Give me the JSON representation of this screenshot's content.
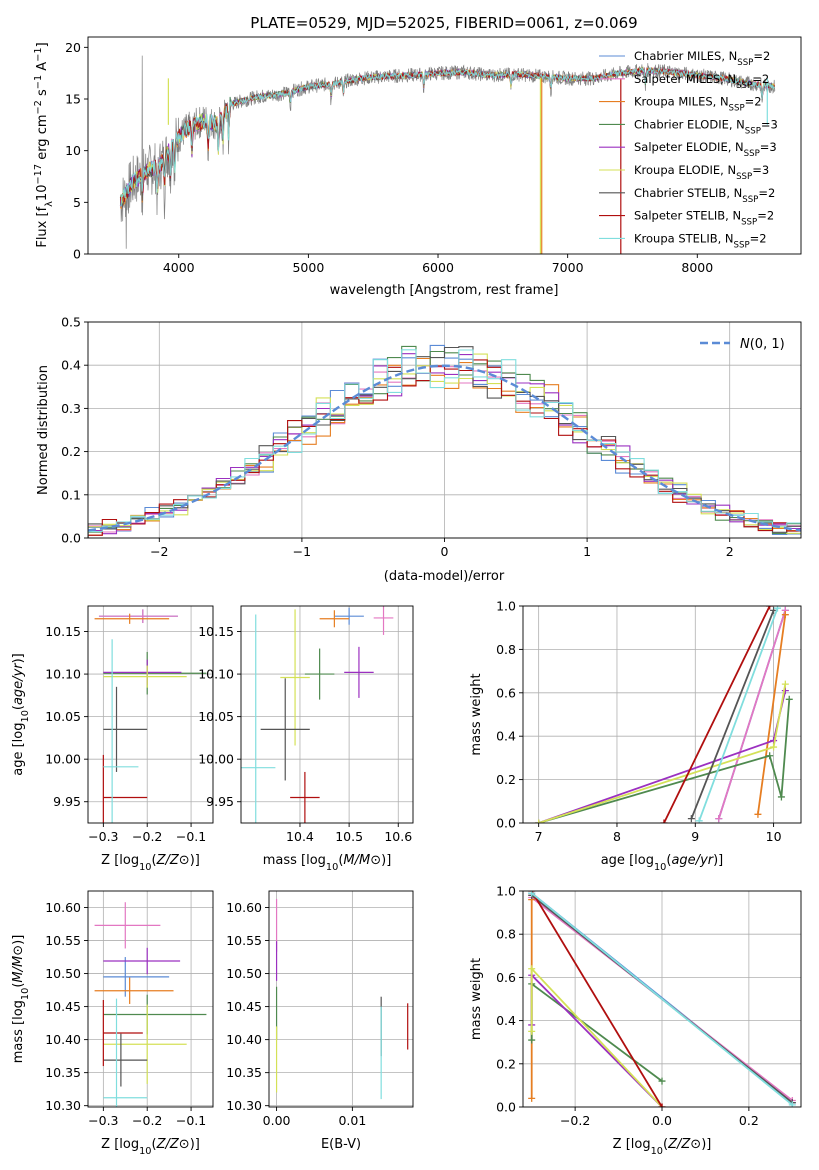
{
  "colors": {
    "Chabrier MILES": "#5b8bd6",
    "Salpeter MILES": "#e377c2",
    "Kroupa MILES": "#e67e22",
    "Chabrier ELODIE": "#4f8a4f",
    "Salpeter ELODIE": "#9b30c0",
    "Kroupa ELODIE": "#d4e157",
    "Chabrier STELIB": "#555555",
    "Salpeter STELIB": "#b00f0f",
    "Kroupa STELIB": "#80dede"
  },
  "chart_data": [
    {
      "id": "spectrum",
      "type": "line",
      "title": "PLATE=0529, MJD=52025, FIBERID=0061, z=0.069",
      "xlabel": "wavelength [Angstrom, rest frame]",
      "ylabel": "Flux [fλ10⁻¹⁷ erg cm⁻² s⁻¹ A⁻¹]",
      "xlim": [
        3300,
        8800
      ],
      "ylim": [
        0,
        21
      ],
      "xticks": [
        4000,
        5000,
        6000,
        7000,
        8000
      ],
      "yticks": [
        0,
        5,
        10,
        15,
        20
      ],
      "grid": false,
      "legend_position": "right",
      "legend": [
        {
          "name": "Chabrier MILES",
          "ssp": "2"
        },
        {
          "name": "Salpeter MILES",
          "ssp": "2"
        },
        {
          "name": "Kroupa MILES",
          "ssp": "2"
        },
        {
          "name": "Chabrier ELODIE",
          "ssp": "3"
        },
        {
          "name": "Salpeter ELODIE",
          "ssp": "3"
        },
        {
          "name": "Kroupa ELODIE",
          "ssp": "3"
        },
        {
          "name": "Chabrier STELIB",
          "ssp": "2"
        },
        {
          "name": "Salpeter STELIB",
          "ssp": "2"
        },
        {
          "name": "Kroupa STELIB",
          "ssp": "2"
        }
      ],
      "continuum": [
        [
          3550,
          5
        ],
        [
          3650,
          7
        ],
        [
          3750,
          8
        ],
        [
          3850,
          8.5
        ],
        [
          3950,
          10.5
        ],
        [
          4050,
          12
        ],
        [
          4200,
          13
        ],
        [
          4300,
          12.5
        ],
        [
          4400,
          14.5
        ],
        [
          4600,
          15.2
        ],
        [
          4800,
          15.5
        ],
        [
          5000,
          16.2
        ],
        [
          5200,
          16.5
        ],
        [
          5400,
          17
        ],
        [
          5600,
          17.2
        ],
        [
          5800,
          17.3
        ],
        [
          6000,
          17.5
        ],
        [
          6200,
          17.6
        ],
        [
          6400,
          17.3
        ],
        [
          6600,
          17.4
        ],
        [
          6800,
          17.2
        ],
        [
          7000,
          17
        ],
        [
          7200,
          17
        ],
        [
          7400,
          17.5
        ],
        [
          7600,
          17.8
        ],
        [
          7800,
          17.6
        ],
        [
          8000,
          17.3
        ],
        [
          8200,
          17
        ],
        [
          8400,
          16.5
        ],
        [
          8600,
          16.2
        ]
      ]
    },
    {
      "id": "residuals",
      "type": "step",
      "xlabel": "(data-model)/error",
      "ylabel": "Normed distribution",
      "xlim": [
        -2.5,
        2.5
      ],
      "ylim": [
        0,
        0.5
      ],
      "xticks": [
        -2,
        -1,
        0,
        1,
        2
      ],
      "yticks": [
        0.0,
        0.1,
        0.2,
        0.3,
        0.4,
        0.5
      ],
      "grid": true,
      "legend": "N(0,1)",
      "legend_position": "top-right",
      "bin_width": 0.1
    },
    {
      "id": "age-vs-Z",
      "type": "errorbar",
      "xlabel": "Z [log10(Z/Z⊙)]",
      "ylabel": "age  [log10(age/yr)]",
      "xlim": [
        -0.335,
        -0.05
      ],
      "ylim": [
        9.925,
        10.18
      ],
      "xticks": [
        -0.3,
        -0.2,
        -0.1
      ],
      "yticks": [
        9.95,
        10.0,
        10.05,
        10.1,
        10.15
      ],
      "grid": true,
      "points": [
        {
          "series": "Chabrier MILES",
          "x": -0.21,
          "xerr_lo": 0.1,
          "xerr_hi": 0.08,
          "y": 10.168,
          "yerr": 0.008
        },
        {
          "series": "Salpeter MILES",
          "x": -0.21,
          "xerr_lo": 0.1,
          "xerr_hi": 0.08,
          "y": 10.168,
          "yerr": 0.008
        },
        {
          "series": "Kroupa MILES",
          "x": -0.24,
          "xerr_lo": 0.08,
          "xerr_hi": 0.09,
          "y": 10.165,
          "yerr": 0.006
        },
        {
          "series": "Chabrier ELODIE",
          "x": -0.2,
          "xerr_lo": 0.1,
          "xerr_hi": 0.135,
          "y": 10.101,
          "yerr": 0.025
        },
        {
          "series": "Salpeter ELODIE",
          "x": -0.2,
          "xerr_lo": 0.1,
          "xerr_hi": 0.078,
          "y": 10.102,
          "yerr": 0.015
        },
        {
          "series": "Kroupa ELODIE",
          "x": -0.2,
          "xerr_lo": 0.1,
          "xerr_hi": 0.09,
          "y": 10.097,
          "yerr": 0.013
        },
        {
          "series": "Chabrier STELIB",
          "x": -0.27,
          "xerr_lo": 0.03,
          "xerr_hi": 0.07,
          "y": 10.035,
          "yerr": 0.05
        },
        {
          "series": "Salpeter STELIB",
          "x": -0.3,
          "xerr_lo": 0.0,
          "xerr_hi": 0.1,
          "y": 9.955,
          "yerr": 0.05
        },
        {
          "series": "Kroupa STELIB",
          "x": -0.28,
          "xerr_lo": 0.02,
          "xerr_hi": 0.06,
          "y": 9.991,
          "yerr": 0.15
        }
      ]
    },
    {
      "id": "age-vs-mass",
      "type": "errorbar",
      "xlabel": "mass [log10(M/M⊙)]",
      "ylabel": "",
      "xlim": [
        10.28,
        10.63
      ],
      "ylim": [
        9.925,
        10.18
      ],
      "xticks": [
        10.4,
        10.5,
        10.6
      ],
      "yticks": [
        9.95,
        10.0,
        10.05,
        10.1,
        10.15
      ],
      "grid": true,
      "points": [
        {
          "series": "Chabrier MILES",
          "x": 10.5,
          "xerr": 0.03,
          "y": 10.168,
          "yerr": 0.01
        },
        {
          "series": "Salpeter MILES",
          "x": 10.57,
          "xerr": 0.02,
          "y": 10.166,
          "yerr": 0.02
        },
        {
          "series": "Kroupa MILES",
          "x": 10.47,
          "xerr": 0.03,
          "y": 10.165,
          "yerr": 0.01
        },
        {
          "series": "Chabrier ELODIE",
          "x": 10.44,
          "xerr": 0.03,
          "y": 10.1,
          "yerr": 0.03
        },
        {
          "series": "Salpeter ELODIE",
          "x": 10.52,
          "xerr": 0.03,
          "y": 10.102,
          "yerr": 0.03
        },
        {
          "series": "Kroupa ELODIE",
          "x": 10.39,
          "xerr": 0.03,
          "y": 10.096,
          "yerr": 0.08
        },
        {
          "series": "Chabrier STELIB",
          "x": 10.37,
          "xerr": 0.05,
          "y": 10.035,
          "yerr": 0.06
        },
        {
          "series": "Salpeter STELIB",
          "x": 10.41,
          "xerr": 0.03,
          "y": 9.955,
          "yerr": 0.03
        },
        {
          "series": "Kroupa STELIB",
          "x": 10.31,
          "xerr": 0.04,
          "y": 9.99,
          "yerr": 0.18
        }
      ]
    },
    {
      "id": "mass-weight-vs-age",
      "type": "line",
      "xlabel": "age  [log10(age/yr)]",
      "ylabel": "mass weight",
      "xlim": [
        6.8,
        10.35
      ],
      "ylim": [
        0,
        1
      ],
      "xticks": [
        7,
        8,
        9,
        10
      ],
      "yticks": [
        0.0,
        0.2,
        0.4,
        0.6,
        0.8,
        1.0
      ],
      "grid": true,
      "series": [
        {
          "name": "Chabrier MILES",
          "points": [
            [
              9.3,
              0.02
            ],
            [
              10.15,
              0.98
            ]
          ]
        },
        {
          "name": "Salpeter MILES",
          "points": [
            [
              9.3,
              0.02
            ],
            [
              10.15,
              0.98
            ]
          ]
        },
        {
          "name": "Kroupa MILES",
          "points": [
            [
              9.8,
              0.04
            ],
            [
              10.15,
              0.96
            ]
          ]
        },
        {
          "name": "Chabrier ELODIE",
          "points": [
            [
              7.0,
              0.0
            ],
            [
              9.95,
              0.31
            ],
            [
              10.1,
              0.12
            ],
            [
              10.2,
              0.57
            ]
          ]
        },
        {
          "name": "Salpeter ELODIE",
          "points": [
            [
              7.0,
              0.0
            ],
            [
              10.0,
              0.38
            ],
            [
              10.15,
              0.61
            ]
          ]
        },
        {
          "name": "Kroupa ELODIE",
          "points": [
            [
              7.0,
              0.0
            ],
            [
              10.0,
              0.35
            ],
            [
              10.15,
              0.64
            ]
          ]
        },
        {
          "name": "Chabrier STELIB",
          "points": [
            [
              8.95,
              0.02
            ],
            [
              10.0,
              0.98
            ]
          ]
        },
        {
          "name": "Salpeter STELIB",
          "points": [
            [
              8.6,
              0.0
            ],
            [
              9.95,
              1.0
            ]
          ]
        },
        {
          "name": "Kroupa STELIB",
          "points": [
            [
              9.05,
              0.01
            ],
            [
              10.05,
              0.99
            ]
          ]
        }
      ]
    },
    {
      "id": "mass-vs-Z",
      "type": "errorbar",
      "xlabel": "Z [log10(Z/Z⊙)]",
      "ylabel": "mass [log10(M/M⊙)]",
      "xlim": [
        -0.335,
        -0.05
      ],
      "ylim": [
        10.298,
        10.625
      ],
      "xticks": [
        -0.3,
        -0.2,
        -0.1
      ],
      "yticks": [
        10.3,
        10.35,
        10.4,
        10.45,
        10.5,
        10.55,
        10.6
      ],
      "grid": true,
      "points": [
        {
          "series": "Chabrier MILES",
          "x": -0.25,
          "xerr_lo": 0.05,
          "xerr_hi": 0.1,
          "y": 10.495,
          "yerr": 0.03
        },
        {
          "series": "Salpeter MILES",
          "x": -0.25,
          "xerr_lo": 0.07,
          "xerr_hi": 0.08,
          "y": 10.573,
          "yerr": 0.035
        },
        {
          "series": "Kroupa MILES",
          "x": -0.24,
          "xerr_lo": 0.08,
          "xerr_hi": 0.1,
          "y": 10.474,
          "yerr": 0.02
        },
        {
          "series": "Chabrier ELODIE",
          "x": -0.2,
          "xerr_lo": 0.1,
          "xerr_hi": 0.135,
          "y": 10.438,
          "yerr": 0.03
        },
        {
          "series": "Salpeter ELODIE",
          "x": -0.2,
          "xerr_lo": 0.1,
          "xerr_hi": 0.075,
          "y": 10.519,
          "yerr": 0.02
        },
        {
          "series": "Kroupa ELODIE",
          "x": -0.2,
          "xerr_lo": 0.1,
          "xerr_hi": 0.09,
          "y": 10.393,
          "yerr": 0.06
        },
        {
          "series": "Chabrier STELIB",
          "x": -0.26,
          "xerr_lo": 0.04,
          "xerr_hi": 0.06,
          "y": 10.369,
          "yerr": 0.04
        },
        {
          "series": "Salpeter STELIB",
          "x": -0.3,
          "xerr_lo": 0.0,
          "xerr_hi": 0.09,
          "y": 10.41,
          "yerr": 0.05
        },
        {
          "series": "Kroupa STELIB",
          "x": -0.27,
          "xerr_lo": 0.03,
          "xerr_hi": 0.07,
          "y": 10.312,
          "yerr": 0.15
        }
      ]
    },
    {
      "id": "mass-vs-EBV",
      "type": "errorbar",
      "xlabel": "E(B-V)",
      "ylabel": "",
      "xlim": [
        -0.001,
        0.018
      ],
      "ylim": [
        10.298,
        10.625
      ],
      "xticks": [
        0.0,
        0.01
      ],
      "yticks": [
        10.3,
        10.35,
        10.4,
        10.45,
        10.5,
        10.55,
        10.6
      ],
      "grid": true,
      "points": [
        {
          "series": "Salpeter MILES",
          "x": 0.0,
          "y": 10.573,
          "yerr": 0.04
        },
        {
          "series": "Salpeter ELODIE",
          "x": 0.0,
          "y": 10.519,
          "yerr": 0.03
        },
        {
          "series": "Chabrier ELODIE",
          "x": 0.0,
          "y": 10.44,
          "yerr": 0.04
        },
        {
          "series": "Kroupa ELODIE",
          "x": 0.0,
          "y": 10.37,
          "yerr": 0.05
        },
        {
          "series": "Chabrier STELIB",
          "x": 0.0138,
          "y": 10.42,
          "yerr": 0.045
        },
        {
          "series": "Kroupa STELIB",
          "x": 0.0138,
          "y": 10.38,
          "yerr": 0.07
        },
        {
          "series": "Salpeter STELIB",
          "x": 0.0173,
          "y": 10.42,
          "yerr": 0.035
        }
      ]
    },
    {
      "id": "mass-weight-vs-Z",
      "type": "line",
      "xlabel": "Z [log10(Z/Z⊙)]",
      "ylabel": "mass weight",
      "xlim": [
        -0.32,
        0.32
      ],
      "ylim": [
        0,
        1
      ],
      "xticks": [
        -0.2,
        0.0,
        0.2
      ],
      "yticks": [
        0.0,
        0.2,
        0.4,
        0.6,
        0.8,
        1.0
      ],
      "grid": true,
      "series": [
        {
          "name": "Chabrier MILES",
          "points": [
            [
              -0.3,
              0.99
            ],
            [
              0.3,
              0.02
            ]
          ]
        },
        {
          "name": "Salpeter MILES",
          "points": [
            [
              -0.3,
              0.97
            ],
            [
              0.3,
              0.03
            ]
          ]
        },
        {
          "name": "Kroupa MILES",
          "points": [
            [
              -0.3,
              0.96
            ],
            [
              -0.3,
              0.04
            ]
          ]
        },
        {
          "name": "Chabrier ELODIE",
          "points": [
            [
              -0.3,
              0.31
            ],
            [
              -0.3,
              0.57
            ],
            [
              0.0,
              0.12
            ]
          ]
        },
        {
          "name": "Salpeter ELODIE",
          "points": [
            [
              -0.3,
              0.38
            ],
            [
              -0.3,
              0.61
            ],
            [
              0.0,
              0.0
            ]
          ]
        },
        {
          "name": "Kroupa ELODIE",
          "points": [
            [
              -0.3,
              0.35
            ],
            [
              -0.3,
              0.64
            ],
            [
              0.0,
              0.0
            ]
          ]
        },
        {
          "name": "Chabrier STELIB",
          "points": [
            [
              -0.3,
              0.98
            ],
            [
              0.3,
              0.02
            ]
          ]
        },
        {
          "name": "Salpeter STELIB",
          "points": [
            [
              -0.3,
              1.0
            ],
            [
              0.0,
              0.0
            ]
          ]
        },
        {
          "name": "Kroupa STELIB",
          "points": [
            [
              -0.3,
              0.99
            ],
            [
              0.3,
              0.01
            ]
          ]
        }
      ]
    }
  ]
}
